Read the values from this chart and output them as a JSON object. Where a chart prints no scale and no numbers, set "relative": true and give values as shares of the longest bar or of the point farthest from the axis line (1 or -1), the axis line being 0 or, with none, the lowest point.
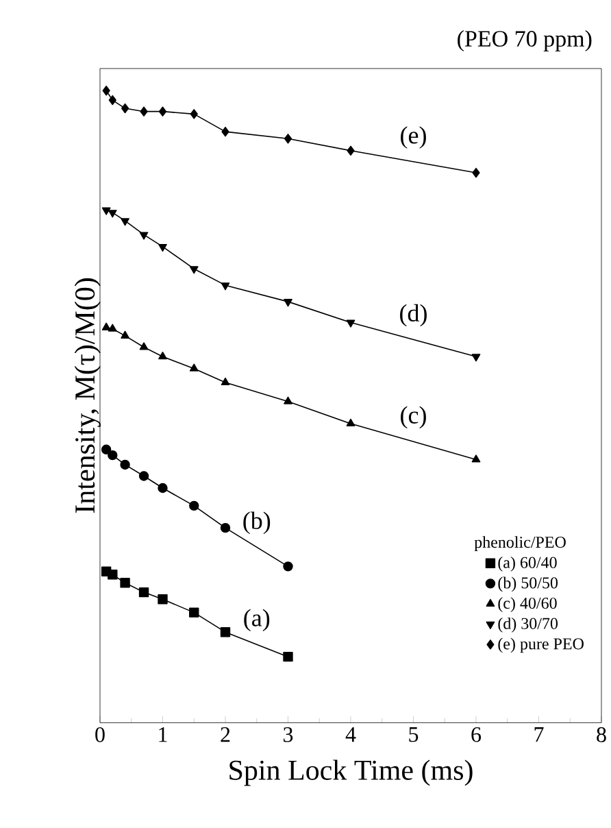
{
  "chart_data": {
    "type": "line",
    "title": "(PEO 70 ppm)",
    "xlabel": "Spin Lock Time (ms)",
    "ylabel": "Intensity, M(τ)/M(0)",
    "legend_title": "phenolic/PEO",
    "legend": "bottom right",
    "relative": true,
    "xlim": [
      0,
      8
    ],
    "xticks": [
      0,
      1,
      2,
      3,
      4,
      5,
      6,
      7,
      8
    ],
    "grid": false,
    "series": [
      {
        "name": "(a) 60/40",
        "color": "#000000",
        "marker": "square",
        "x": [
          0.1,
          0.2,
          0.4,
          0.7,
          1,
          1.5,
          2,
          3
        ],
        "values": [
          0.239,
          0.234,
          0.221,
          0.206,
          0.195,
          0.174,
          0.143,
          0.104
        ]
      },
      {
        "name": "(b) 50/50",
        "color": "#000000",
        "marker": "circle",
        "x": [
          0.1,
          0.2,
          0.4,
          0.7,
          1,
          1.5,
          2,
          3
        ],
        "values": [
          0.432,
          0.423,
          0.408,
          0.39,
          0.371,
          0.343,
          0.308,
          0.247
        ]
      },
      {
        "name": "(c) 40/60",
        "color": "#000000",
        "marker": "triangle",
        "x": [
          0.1,
          0.2,
          0.4,
          0.7,
          1,
          1.5,
          2,
          3,
          4,
          6
        ],
        "values": [
          0.625,
          0.623,
          0.612,
          0.594,
          0.579,
          0.56,
          0.538,
          0.508,
          0.473,
          0.416
        ]
      },
      {
        "name": "(d) 30/70",
        "color": "#000000",
        "marker": "triangle down",
        "x": [
          0.1,
          0.2,
          0.4,
          0.7,
          1,
          1.5,
          2,
          3,
          4,
          6
        ],
        "values": [
          0.811,
          0.807,
          0.794,
          0.772,
          0.753,
          0.718,
          0.692,
          0.666,
          0.633,
          0.579
        ]
      },
      {
        "name": "(e) pure PEO",
        "color": "#000000",
        "marker": "diamond",
        "x": [
          0.1,
          0.2,
          0.4,
          0.7,
          1,
          1.5,
          2,
          3,
          4,
          6
        ],
        "values": [
          1,
          0.985,
          0.972,
          0.967,
          0.967,
          0.963,
          0.935,
          0.924,
          0.905,
          0.87
        ]
      }
    ],
    "annotations": [
      "(a)",
      "(b)",
      "(c)",
      "(d)",
      "(e)"
    ]
  }
}
